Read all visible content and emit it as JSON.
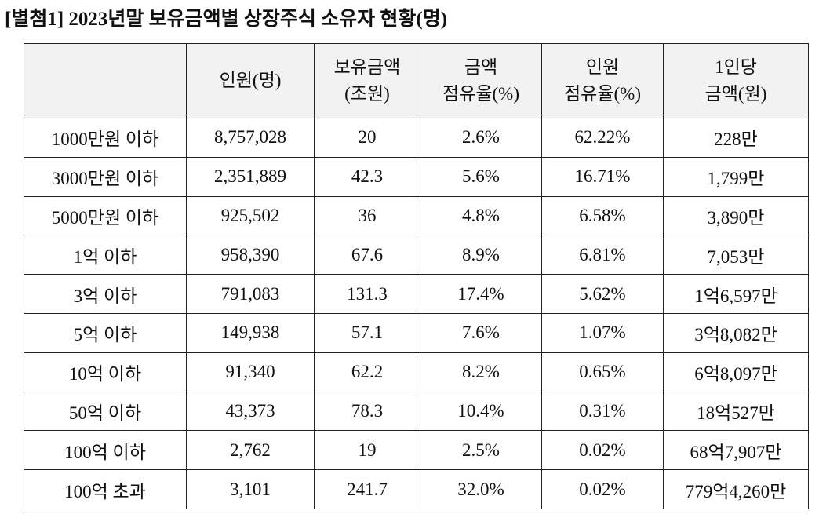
{
  "title": "[별첨1] 2023년말 보유금액별 상장주식 소유자 현황(명)",
  "table": {
    "header": [
      [
        "인원(명)"
      ],
      [
        "보유금액",
        "(조원)"
      ],
      [
        "금액",
        "점유율(%)"
      ],
      [
        "인원",
        "점유율(%)"
      ],
      [
        "1인당",
        "금액(원)"
      ]
    ],
    "rows": [
      [
        "1000만원 이하",
        "8,757,028",
        "20",
        "2.6%",
        "62.22%",
        "228만"
      ],
      [
        "3000만원 이하",
        "2,351,889",
        "42.3",
        "5.6%",
        "16.71%",
        "1,799만"
      ],
      [
        "5000만원 이하",
        "925,502",
        "36",
        "4.8%",
        "6.58%",
        "3,890만"
      ],
      [
        "1억 이하",
        "958,390",
        "67.6",
        "8.9%",
        "6.81%",
        "7,053만"
      ],
      [
        "3억 이하",
        "791,083",
        "131.3",
        "17.4%",
        "5.62%",
        "1억6,597만"
      ],
      [
        "5억 이하",
        "149,938",
        "57.1",
        "7.6%",
        "1.07%",
        "3억8,082만"
      ],
      [
        "10억 이하",
        "91,340",
        "62.2",
        "8.2%",
        "0.65%",
        "6억8,097만"
      ],
      [
        "50억 이하",
        "43,373",
        "78.3",
        "10.4%",
        "0.31%",
        "18억527만"
      ],
      [
        "100억 이하",
        "2,762",
        "19",
        "2.5%",
        "0.02%",
        "68억7,907만"
      ],
      [
        "100억 초과",
        "3,101",
        "241.7",
        "32.0%",
        "0.02%",
        "779억4,260만"
      ]
    ]
  }
}
